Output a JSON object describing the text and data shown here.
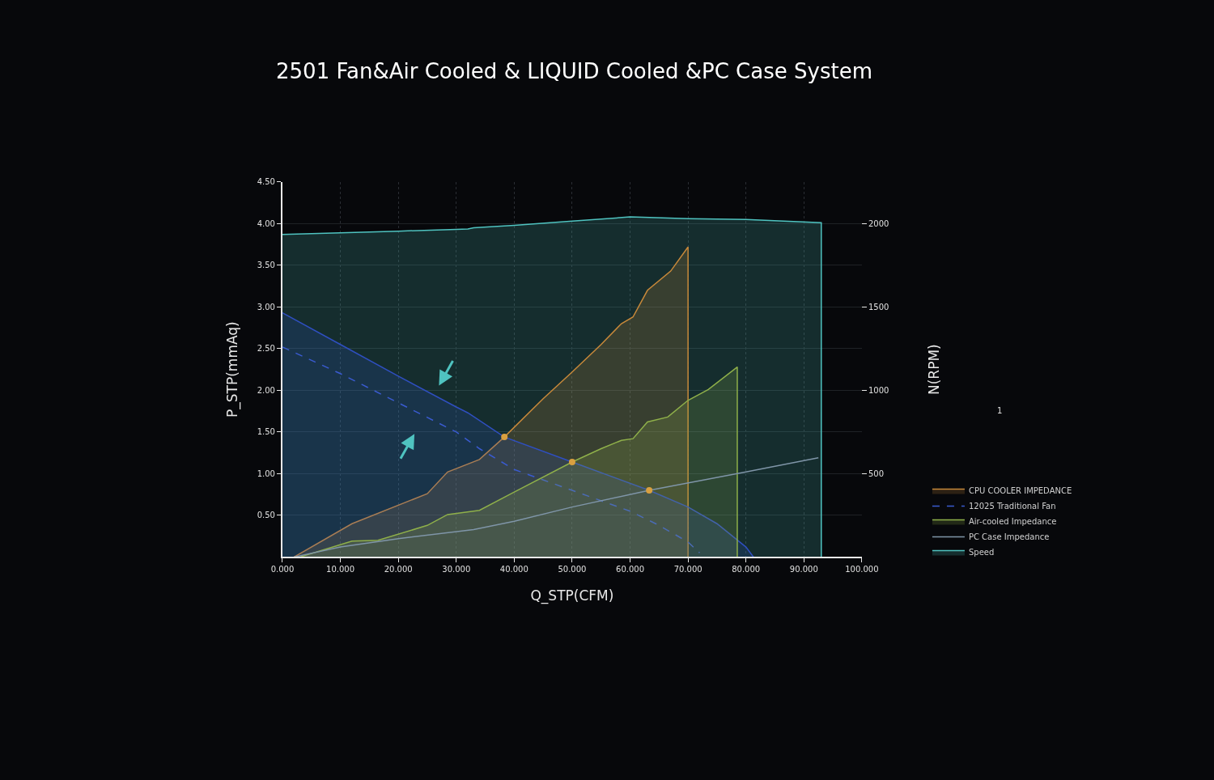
{
  "chart_data": {
    "type": "line",
    "title": "2501 Fan&Air Cooled & LIQUID Cooled &PC Case System",
    "xlabel": "Q_STP(CFM)",
    "ylabel": "P_STP(mmAq)",
    "y2label": "N(RPM)",
    "xlim": [
      0,
      100
    ],
    "xticks": [
      {
        "value": 0,
        "label": "0.000"
      },
      {
        "value": 10,
        "label": "10.000"
      },
      {
        "value": 20,
        "label": "20.000"
      },
      {
        "value": 30,
        "label": "30.000"
      },
      {
        "value": 40,
        "label": "40.000"
      },
      {
        "value": 50,
        "label": "50.000"
      },
      {
        "value": 60,
        "label": "60.000"
      },
      {
        "value": 70,
        "label": "70.000"
      },
      {
        "value": 80,
        "label": "80.000"
      },
      {
        "value": 90,
        "label": "90.000"
      },
      {
        "value": 100,
        "label": "100.000"
      }
    ],
    "ylim": [
      0,
      4.5
    ],
    "yticks": [
      {
        "value": 0.5,
        "label": "0.50"
      },
      {
        "value": 1,
        "label": "1.00"
      },
      {
        "value": 1.5,
        "label": "1.50"
      },
      {
        "value": 2,
        "label": "2.00"
      },
      {
        "value": 2.5,
        "label": "2.50"
      },
      {
        "value": 3,
        "label": "3.00"
      },
      {
        "value": 3.5,
        "label": "3.50"
      },
      {
        "value": 4,
        "label": "4.00"
      },
      {
        "value": 4.5,
        "label": "4.50"
      }
    ],
    "y2lim": [
      0,
      2250
    ],
    "y2ticks": [
      500,
      1000,
      1500,
      2000
    ],
    "grid": true,
    "legend": "right",
    "annotations": [
      "1"
    ],
    "series": [
      {
        "name": "CPU COOLER IMPEDANCE",
        "type": "area",
        "color": "#c8893a",
        "x": [
          2,
          12,
          25,
          28.5,
          34,
          38.3,
          45,
          50,
          55,
          58.5,
          60.5,
          63,
          67,
          70,
          70
        ],
        "values": [
          0,
          0.4,
          0.76,
          1.02,
          1.17,
          1.44,
          1.9,
          2.22,
          2.55,
          2.8,
          2.88,
          3.2,
          3.43,
          3.72,
          0
        ]
      },
      {
        "type": "area",
        "color": "#2f4fc0",
        "x": [
          0,
          10,
          20,
          30,
          32,
          38.3,
          50,
          63.3,
          70,
          75,
          80,
          81.3
        ],
        "values": [
          2.93,
          2.55,
          2.17,
          1.8,
          1.73,
          1.44,
          1.14,
          0.8,
          0.6,
          0.4,
          0.12,
          0
        ]
      },
      {
        "name": "12025 Traditional Fan",
        "line_style": "dashed",
        "color": "#3a5bd0",
        "x": [
          0,
          10,
          20,
          30,
          34,
          40,
          50,
          60,
          65,
          70,
          72
        ],
        "values": [
          2.52,
          2.2,
          1.85,
          1.5,
          1.3,
          1.05,
          0.8,
          0.55,
          0.38,
          0.18,
          0.05
        ]
      },
      {
        "name": "Air-cooled Impedance",
        "type": "area",
        "color": "#8fb04a",
        "x": [
          3,
          12,
          16.5,
          25,
          28.5,
          34,
          40,
          50,
          55,
          58.5,
          60.5,
          63,
          66.5,
          70,
          73.5,
          78.5,
          78.5
        ],
        "values": [
          0,
          0.19,
          0.2,
          0.38,
          0.51,
          0.56,
          0.78,
          1.14,
          1.3,
          1.4,
          1.42,
          1.62,
          1.68,
          1.88,
          2.01,
          2.28,
          0
        ]
      },
      {
        "name": "PC Case Impedance",
        "color": "#7f95a8",
        "x": [
          2,
          10,
          20,
          33,
          40,
          50,
          63.3,
          80,
          92.5
        ],
        "values": [
          0,
          0.12,
          0.22,
          0.33,
          0.43,
          0.6,
          0.8,
          1.02,
          1.19
        ]
      },
      {
        "name": "Speed",
        "type": "area",
        "axis": "y2",
        "color": "#4fc3c0",
        "x": [
          0,
          10,
          20,
          30,
          32,
          33,
          40,
          50,
          60,
          70,
          80,
          93,
          93
        ],
        "values": [
          1935,
          1945,
          1955,
          1965,
          1968,
          1975,
          1990,
          2015,
          2040,
          2030,
          2025,
          2005,
          0
        ]
      },
      {
        "type": "scatter",
        "marker": "circle",
        "color": "#d9a040",
        "x": [
          38.3,
          50,
          63.3
        ],
        "values": [
          1.44,
          1.14,
          0.8
        ]
      }
    ]
  }
}
